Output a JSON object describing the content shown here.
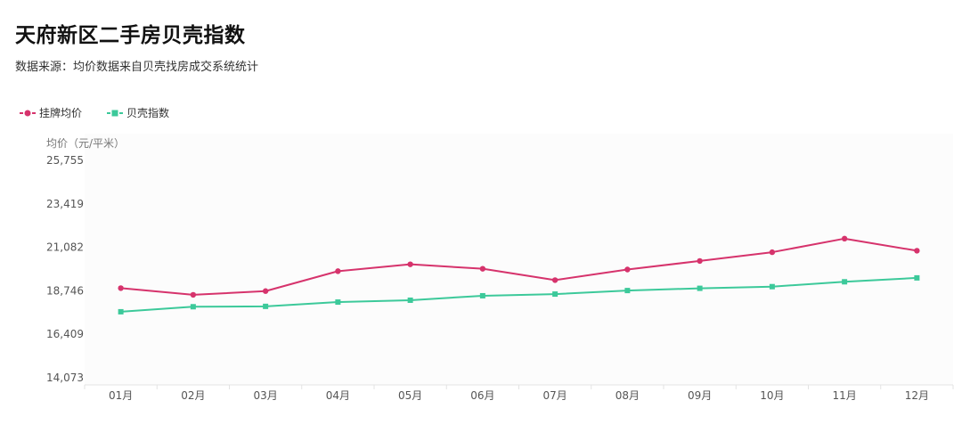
{
  "title": "天府新区二手房贝壳指数",
  "subtitle": "数据来源：均价数据来自贝壳找房成交系统统计",
  "colors": {
    "listing": "#d6336c",
    "index": "#3cc99a",
    "axis": "#e3e3e3",
    "text": "#555555",
    "plot_bg": "#fcfcfc"
  },
  "chart_data": {
    "type": "line",
    "ylabel": "均价（元/平米）",
    "categories": [
      "01月",
      "02月",
      "03月",
      "04月",
      "05月",
      "06月",
      "07月",
      "08月",
      "09月",
      "10月",
      "11月",
      "12月"
    ],
    "yticks": [
      "14,073",
      "16,409",
      "18,746",
      "21,082",
      "23,419",
      "25,755"
    ],
    "ylim": [
      14073,
      25755
    ],
    "legend_position": "top-left",
    "grid": false,
    "series": [
      {
        "name": "挂牌均价",
        "marker": "circle",
        "values": [
          18890,
          18530,
          18730,
          19800,
          20170,
          19930,
          19320,
          19890,
          20350,
          20820,
          21550,
          20900
        ]
      },
      {
        "name": "贝壳指数",
        "marker": "square",
        "values": [
          17620,
          17890,
          17910,
          18140,
          18240,
          18480,
          18570,
          18760,
          18880,
          18970,
          19230,
          19440
        ]
      }
    ]
  }
}
